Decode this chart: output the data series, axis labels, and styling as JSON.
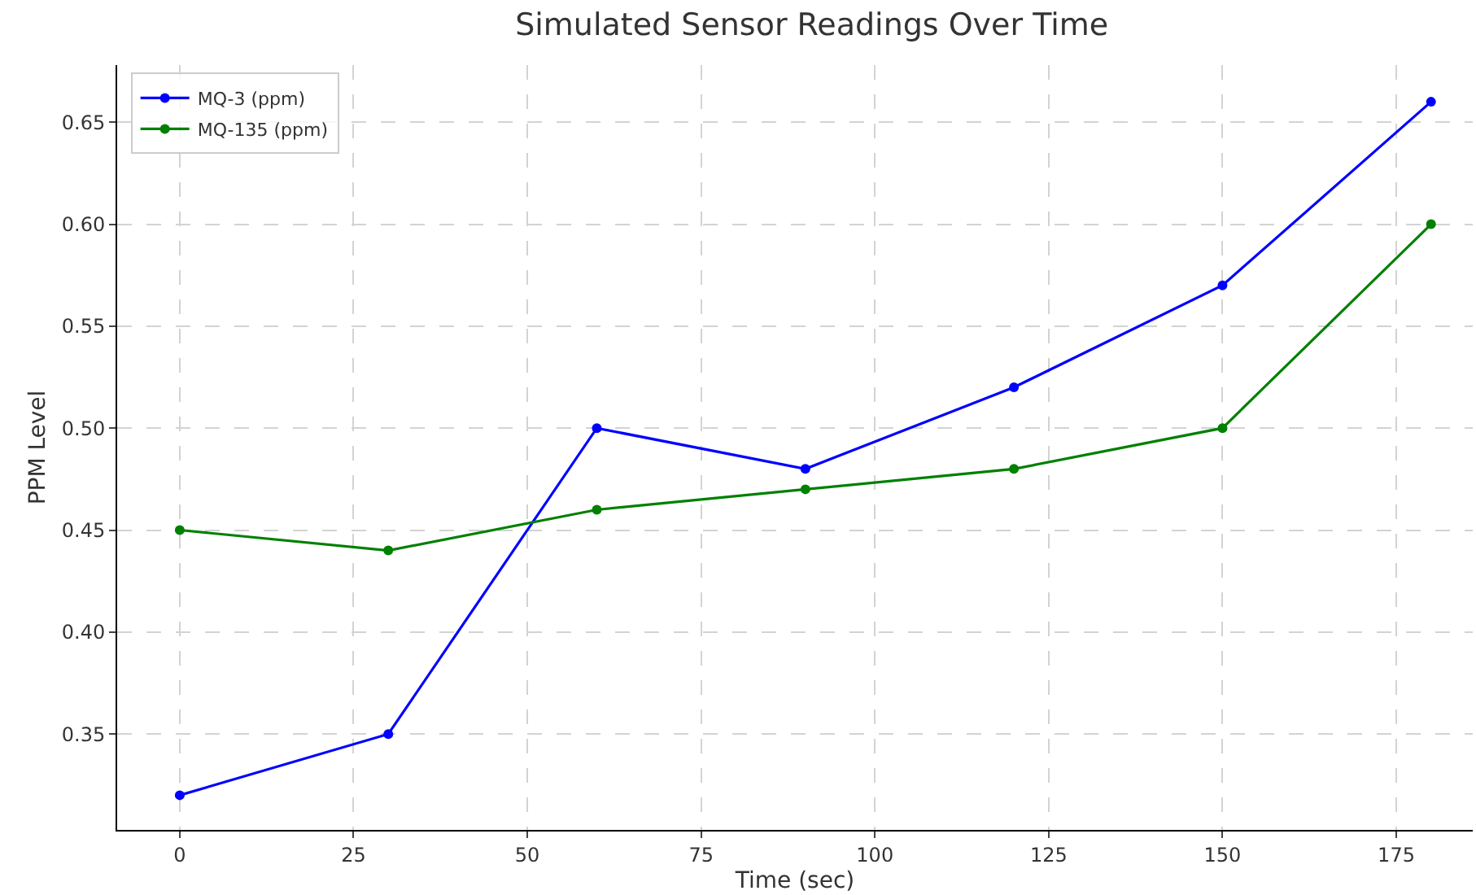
{
  "chart_data": {
    "type": "line",
    "title": "Simulated Sensor Readings Over Time",
    "xlabel": "Time (sec)",
    "ylabel": "PPM Level",
    "x": [
      0,
      30,
      60,
      90,
      120,
      150,
      180
    ],
    "series": [
      {
        "name": "MQ-3 (ppm)",
        "color": "#0000ff",
        "values": [
          0.32,
          0.35,
          0.5,
          0.48,
          0.52,
          0.57,
          0.66
        ]
      },
      {
        "name": "MQ-135 (ppm)",
        "color": "#008000",
        "values": [
          0.45,
          0.44,
          0.46,
          0.47,
          0.48,
          0.5,
          0.6
        ]
      }
    ],
    "xlim": [
      -9,
      186
    ],
    "xticks": [
      0,
      25,
      50,
      75,
      100,
      125,
      150,
      175
    ],
    "ylim": [
      0.303,
      0.678
    ],
    "yticks": [
      {
        "value": 0.35,
        "label": "0.35"
      },
      {
        "value": 0.4,
        "label": "0.40"
      },
      {
        "value": 0.45,
        "label": "0.45"
      },
      {
        "value": 0.5,
        "label": "0.50"
      },
      {
        "value": 0.55,
        "label": "0.55"
      },
      {
        "value": 0.6,
        "label": "0.60"
      },
      {
        "value": 0.65,
        "label": "0.65"
      }
    ],
    "grid": true,
    "legend": "top left",
    "marker": "circle",
    "line_style": "solid"
  }
}
